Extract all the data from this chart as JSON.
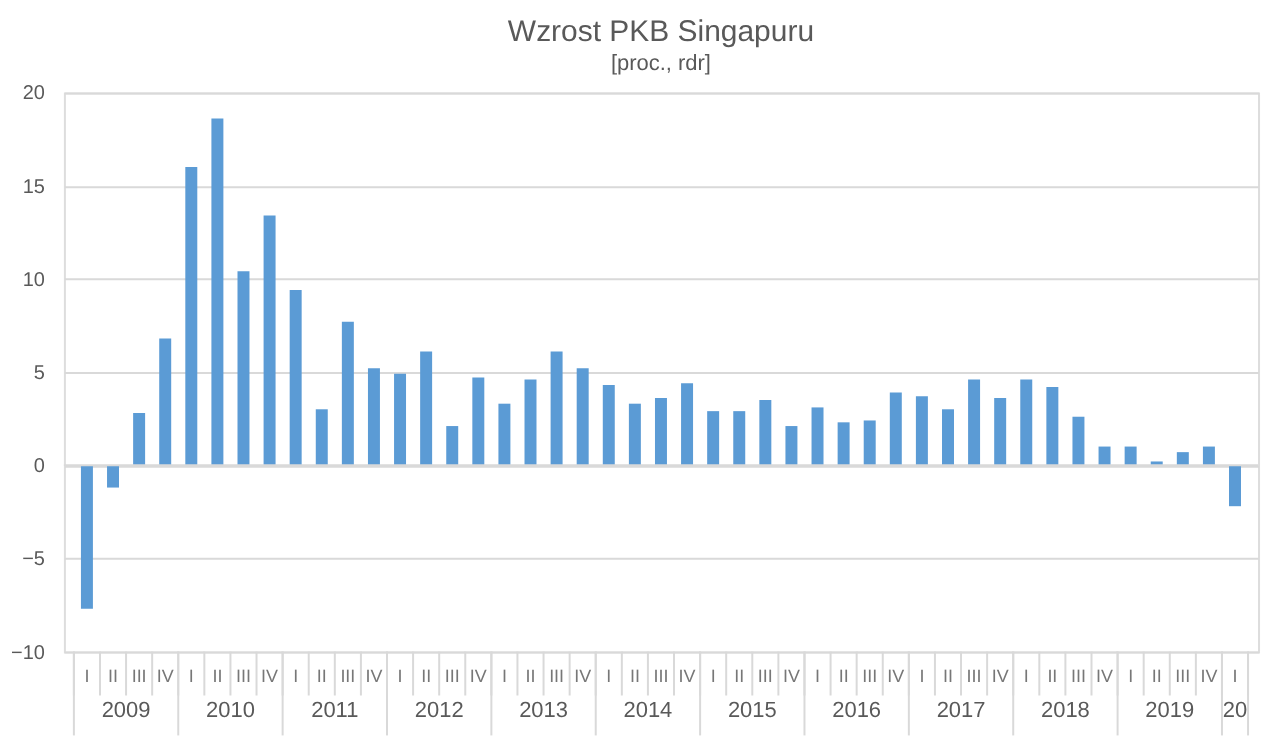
{
  "chart_data": {
    "type": "bar",
    "title": "Wzrost PKB Singapuru",
    "subtitle": "[proc., rdr]",
    "categories": [
      "I",
      "II",
      "III",
      "IV",
      "I",
      "II",
      "III",
      "IV",
      "I",
      "II",
      "III",
      "IV",
      "I",
      "II",
      "III",
      "IV",
      "I",
      "II",
      "III",
      "IV",
      "I",
      "II",
      "III",
      "IV",
      "I",
      "II",
      "III",
      "IV",
      "I",
      "II",
      "III",
      "IV",
      "I",
      "II",
      "III",
      "IV",
      "I",
      "II",
      "III",
      "IV",
      "I",
      "II",
      "III",
      "IV",
      "I"
    ],
    "values": [
      -7.7,
      -1.2,
      2.8,
      6.8,
      16.0,
      18.6,
      10.4,
      13.4,
      9.4,
      3.0,
      7.7,
      5.2,
      4.9,
      6.1,
      2.1,
      4.7,
      3.3,
      4.6,
      6.1,
      5.2,
      4.3,
      3.3,
      3.6,
      4.4,
      2.9,
      2.9,
      3.5,
      2.1,
      3.1,
      2.3,
      2.4,
      3.9,
      3.7,
      3.0,
      4.6,
      3.6,
      4.6,
      4.2,
      2.6,
      1.0,
      1.0,
      0.2,
      0.7,
      1.0,
      -2.2
    ],
    "color": "#5b9bd5",
    "annotations": [
      "2009",
      "2010",
      "2011",
      "2012",
      "2013",
      "2014",
      "2015",
      "2016",
      "2017",
      "2018",
      "2019",
      "20"
    ],
    "ylim": [
      -10,
      20
    ],
    "yticks": [
      -10,
      -5,
      0,
      5,
      10,
      15,
      20
    ],
    "grid": "y"
  }
}
